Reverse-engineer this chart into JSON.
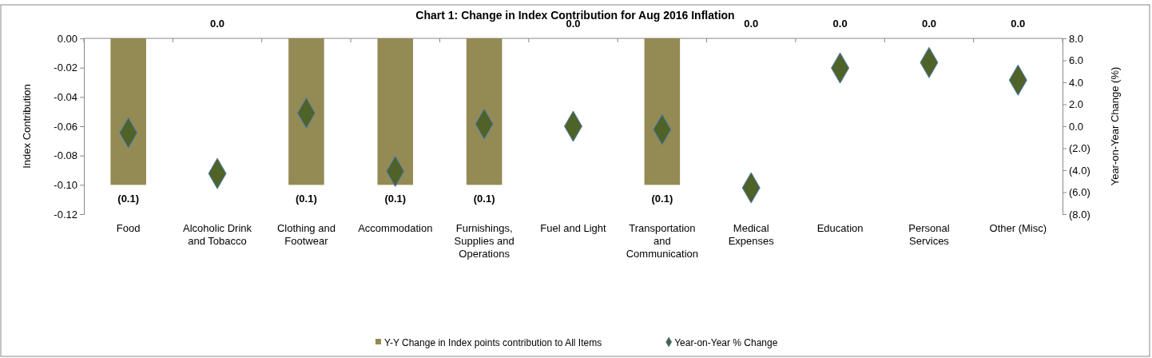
{
  "chart_data": {
    "type": "bar",
    "title": "Chart 1: Change in Index Contribution for Aug 2016 Inflation",
    "ylabel": "Index Contribution",
    "y2label": "Year-on-Year Change (%)",
    "categories": [
      "Food",
      "Alcoholic Drink and Tobacco",
      "Clothing and Footwear",
      "Accommodation",
      "Furnishings, Supplies and Operations",
      "Fuel and Light",
      "Transportation and Communication",
      "Medical Expenses",
      "Education",
      "Personal Services",
      "Other (Misc)"
    ],
    "series": [
      {
        "name": "Y-Y Change in Index points contribution to All Items",
        "color": "#948a54",
        "values": [
          -0.1,
          0,
          -0.1,
          -0.1,
          -0.1,
          0,
          -0.1,
          0,
          0,
          0,
          0
        ],
        "value_labels": [
          "(0.1)",
          "0.0",
          "(0.1)",
          "(0.1)",
          "(0.1)",
          "0.0",
          "(0.1)",
          "0.0",
          "0.0",
          "0.0",
          "0.0"
        ]
      },
      {
        "name": "Year-on-Year % Change",
        "type": "scatter",
        "axis": "y2",
        "marker": "diamond",
        "color": "#4f6228",
        "values": [
          -0.6,
          -4.3,
          1.2,
          -4.1,
          0.2,
          0.0,
          -0.3,
          -5.6,
          5.3,
          5.8,
          4.2
        ]
      }
    ],
    "ylim": [
      -0.12,
      0
    ],
    "yticks": [
      {
        "value": 0,
        "label": "0.00"
      },
      -0.02,
      -0.04,
      -0.06,
      -0.08,
      {
        "value": -0.1,
        "label": "-0.10"
      },
      -0.12
    ],
    "y2lim": [
      -8,
      8
    ],
    "y2ticks": [
      {
        "value": 8,
        "label": "8.0"
      },
      {
        "value": 6,
        "label": "6.0"
      },
      {
        "value": 4,
        "label": "4.0"
      },
      {
        "value": 2,
        "label": "2.0"
      },
      {
        "value": 0,
        "label": "0.0"
      },
      {
        "value": -2,
        "label": "(2.0)"
      },
      {
        "value": -4,
        "label": "(4.0)"
      },
      {
        "value": -6,
        "label": "(6.0)"
      },
      {
        "value": -8,
        "label": "(8.0)"
      }
    ],
    "legend": "bottom",
    "grid": false
  }
}
